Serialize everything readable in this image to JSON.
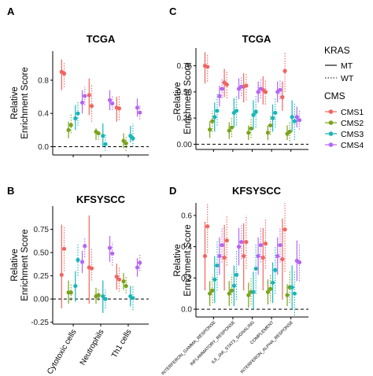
{
  "colors": {
    "CMS1": "#f0665f",
    "CMS2": "#7aa31c",
    "CMS3": "#19b6b9",
    "CMS4": "#b566f5"
  },
  "legend": {
    "kras_title": "KRAS",
    "kras_items": [
      {
        "label": "MT",
        "line": "solid"
      },
      {
        "label": "WT",
        "line": "dotted"
      }
    ],
    "cms_title": "CMS",
    "cms_items": [
      "CMS1",
      "CMS2",
      "CMS3",
      "CMS4"
    ]
  },
  "chart_data": [
    {
      "panel": "A",
      "title": "TCGA",
      "type": "pointrange",
      "ylabel": "Relative\nEnrichment Score",
      "ylim": [
        -0.1,
        1.15
      ],
      "yticks": [
        0.0,
        0.4,
        0.8
      ],
      "ytick_labels": [
        "0.0",
        "0.4",
        "0.8"
      ],
      "hline": 0,
      "categories": [
        "Cytotoxic cells",
        "Neutrophils",
        "Th1 cells"
      ],
      "show_xlabels": false,
      "series": [
        {
          "cms": "CMS1",
          "kras": "MT",
          "values": [
            0.9,
            0.62,
            0.47
          ],
          "low": [
            0.68,
            0.38,
            0.3
          ],
          "high": [
            1.05,
            0.82,
            0.6
          ]
        },
        {
          "cms": "CMS1",
          "kras": "WT",
          "values": [
            0.88,
            0.49,
            0.46
          ],
          "low": [
            0.72,
            0.3,
            0.32
          ],
          "high": [
            1.02,
            0.75,
            0.62
          ]
        },
        {
          "cms": "CMS2",
          "kras": "MT",
          "values": [
            0.2,
            0.18,
            0.07
          ],
          "low": [
            0.1,
            0.08,
            -0.02
          ],
          "high": [
            0.3,
            0.22,
            0.16
          ]
        },
        {
          "cms": "CMS2",
          "kras": "WT",
          "values": [
            0.26,
            0.16,
            0.04
          ],
          "low": [
            0.16,
            0.08,
            -0.05
          ],
          "high": [
            0.4,
            0.2,
            0.12
          ]
        },
        {
          "cms": "CMS3",
          "kras": "MT",
          "values": [
            0.34,
            0.13,
            0.13
          ],
          "low": [
            0.2,
            0.0,
            0.05
          ],
          "high": [
            0.5,
            0.28,
            0.25
          ]
        },
        {
          "cms": "CMS3",
          "kras": "WT",
          "values": [
            0.4,
            0.03,
            0.1
          ],
          "low": [
            0.25,
            -0.05,
            0.0
          ],
          "high": [
            0.55,
            0.15,
            0.28
          ]
        },
        {
          "cms": "CMS4",
          "kras": "MT",
          "values": [
            0.53,
            0.56,
            0.47
          ],
          "low": [
            0.4,
            0.44,
            0.36
          ],
          "high": [
            0.68,
            0.68,
            0.58
          ]
        },
        {
          "cms": "CMS4",
          "kras": "WT",
          "values": [
            0.61,
            0.52,
            0.41
          ],
          "low": [
            0.5,
            0.44,
            0.33
          ],
          "high": [
            0.72,
            0.62,
            0.5
          ]
        }
      ]
    },
    {
      "panel": "B",
      "title": "KFSYSCC",
      "type": "pointrange",
      "ylabel": "Relative\nEnrichment Score",
      "ylim": [
        -0.27,
        1.0
      ],
      "yticks": [
        -0.25,
        0.0,
        0.25,
        0.5,
        0.75
      ],
      "ytick_labels": [
        "-0.25",
        "0.00",
        "0.25",
        "0.50",
        "0.75"
      ],
      "hline": 0,
      "categories": [
        "Cytotoxic cells",
        "Neutrophils",
        "Th1 cells"
      ],
      "show_xlabels": true,
      "series": [
        {
          "cms": "CMS1",
          "kras": "MT",
          "values": [
            0.26,
            0.34,
            0.24
          ],
          "low": [
            -0.1,
            -0.05,
            0.1
          ],
          "high": [
            0.8,
            0.9,
            0.38
          ]
        },
        {
          "cms": "CMS1",
          "kras": "WT",
          "values": [
            0.54,
            0.33,
            0.21
          ],
          "low": [
            0.3,
            0.2,
            0.08
          ],
          "high": [
            0.78,
            0.55,
            0.35
          ]
        },
        {
          "cms": "CMS2",
          "kras": "MT",
          "values": [
            0.07,
            0.03,
            0.19
          ],
          "low": [
            -0.05,
            -0.05,
            0.1
          ],
          "high": [
            0.2,
            0.12,
            0.28
          ]
        },
        {
          "cms": "CMS2",
          "kras": "WT",
          "values": [
            0.07,
            0.04,
            0.14
          ],
          "low": [
            -0.02,
            -0.02,
            0.06
          ],
          "high": [
            0.17,
            0.1,
            0.24
          ]
        },
        {
          "cms": "CMS3",
          "kras": "MT",
          "values": [
            0.14,
            0.03,
            0.03
          ],
          "low": [
            -0.03,
            -0.15,
            -0.08
          ],
          "high": [
            0.3,
            0.2,
            0.14
          ]
        },
        {
          "cms": "CMS3",
          "kras": "WT",
          "values": [
            0.42,
            0.0,
            0.01
          ],
          "low": [
            0.25,
            -0.1,
            -0.12
          ],
          "high": [
            0.6,
            0.1,
            0.14
          ]
        },
        {
          "cms": "CMS4",
          "kras": "MT",
          "values": [
            0.4,
            0.55,
            0.34
          ],
          "low": [
            0.28,
            0.4,
            0.24
          ],
          "high": [
            0.52,
            0.68,
            0.44
          ]
        },
        {
          "cms": "CMS4",
          "kras": "WT",
          "values": [
            0.57,
            0.49,
            0.39
          ],
          "low": [
            0.45,
            0.36,
            0.3
          ],
          "high": [
            0.66,
            0.61,
            0.48
          ]
        }
      ]
    },
    {
      "panel": "C",
      "title": "TCGA",
      "type": "pointrange",
      "ylabel": "Relative\nEnrichment Score",
      "ylim": [
        -0.05,
        0.92
      ],
      "yticks": [
        0.0,
        0.25,
        0.5,
        0.75
      ],
      "ytick_labels": [
        "0.00",
        "0.25",
        "0.50",
        "0.75"
      ],
      "hline": 0,
      "categories": [
        "INTERFERON_GAMMA_RESPONSE",
        "INFLAMMATORY_RESPONSE",
        "IL6_JAK_STAT3_SIGNALING",
        "COMPLEMENT",
        "INTERFERON_ALPHA_RESPONSE"
      ],
      "show_xlabels": false,
      "series": [
        {
          "cms": "CMS1",
          "kras": "MT",
          "values": [
            0.75,
            0.59,
            0.55,
            0.52,
            0.45
          ],
          "low": [
            0.58,
            0.45,
            0.4,
            0.38,
            0.32
          ],
          "high": [
            0.88,
            0.72,
            0.68,
            0.65,
            0.6
          ]
        },
        {
          "cms": "CMS1",
          "kras": "WT",
          "values": [
            0.74,
            0.57,
            0.56,
            0.5,
            0.7
          ],
          "low": [
            0.6,
            0.44,
            0.42,
            0.38,
            0.5
          ],
          "high": [
            0.86,
            0.7,
            0.68,
            0.62,
            0.88
          ]
        },
        {
          "cms": "CMS2",
          "kras": "MT",
          "values": [
            0.14,
            0.13,
            0.11,
            0.11,
            0.1
          ],
          "low": [
            0.06,
            0.05,
            0.04,
            0.04,
            0.04
          ],
          "high": [
            0.22,
            0.21,
            0.18,
            0.18,
            0.18
          ]
        },
        {
          "cms": "CMS2",
          "kras": "WT",
          "values": [
            0.22,
            0.16,
            0.15,
            0.18,
            0.12
          ],
          "low": [
            0.12,
            0.07,
            0.06,
            0.09,
            0.03
          ],
          "high": [
            0.32,
            0.25,
            0.24,
            0.28,
            0.22
          ]
        },
        {
          "cms": "CMS3",
          "kras": "MT",
          "values": [
            0.26,
            0.3,
            0.28,
            0.25,
            0.26
          ],
          "low": [
            0.12,
            0.16,
            0.14,
            0.12,
            0.12
          ],
          "high": [
            0.4,
            0.44,
            0.42,
            0.38,
            0.42
          ]
        },
        {
          "cms": "CMS3",
          "kras": "WT",
          "values": [
            0.32,
            0.32,
            0.31,
            0.3,
            0.22
          ],
          "low": [
            0.18,
            0.18,
            0.16,
            0.16,
            0.04
          ],
          "high": [
            0.48,
            0.46,
            0.46,
            0.44,
            0.4
          ]
        },
        {
          "cms": "CMS4",
          "kras": "MT",
          "values": [
            0.46,
            0.53,
            0.5,
            0.5,
            0.26
          ],
          "low": [
            0.36,
            0.43,
            0.4,
            0.4,
            0.16
          ],
          "high": [
            0.56,
            0.63,
            0.6,
            0.6,
            0.36
          ]
        },
        {
          "cms": "CMS4",
          "kras": "WT",
          "values": [
            0.53,
            0.55,
            0.53,
            0.52,
            0.23
          ],
          "low": [
            0.44,
            0.46,
            0.44,
            0.43,
            0.14
          ],
          "high": [
            0.62,
            0.64,
            0.62,
            0.61,
            0.32
          ]
        }
      ]
    },
    {
      "panel": "D",
      "title": "KFSYSCC",
      "type": "pointrange",
      "ylabel": "Relative\nEnrichment Score",
      "ylim": [
        -0.05,
        0.68
      ],
      "yticks": [
        0.0,
        0.2,
        0.4,
        0.6
      ],
      "ytick_labels": [
        "0.0",
        "0.2",
        "0.4",
        "0.6"
      ],
      "hline": 0,
      "categories": [
        "INTERFERON_GAMMA_RESPONSE",
        "INFLAMMATORY_RESPONSE",
        "IL6_JAK_STAT3_SIGNALING",
        "COMPLEMENT",
        "INTERFERON_ALPHA_RESPONSE"
      ],
      "show_xlabels": true,
      "series": [
        {
          "cms": "CMS1",
          "kras": "MT",
          "values": [
            0.34,
            0.33,
            0.34,
            0.33,
            0.32
          ],
          "low": [
            0.12,
            0.12,
            0.12,
            0.12,
            0.06
          ],
          "high": [
            0.56,
            0.54,
            0.55,
            0.52,
            0.58
          ]
        },
        {
          "cms": "CMS1",
          "kras": "WT",
          "values": [
            0.53,
            0.44,
            0.43,
            0.42,
            0.51
          ],
          "low": [
            0.36,
            0.28,
            0.26,
            0.26,
            0.24
          ],
          "high": [
            0.68,
            0.6,
            0.6,
            0.58,
            0.68
          ]
        },
        {
          "cms": "CMS2",
          "kras": "MT",
          "values": [
            0.1,
            0.1,
            0.09,
            0.11,
            0.09
          ],
          "low": [
            0.02,
            0.02,
            0.01,
            0.03,
            0.02
          ],
          "high": [
            0.18,
            0.18,
            0.17,
            0.19,
            0.16
          ]
        },
        {
          "cms": "CMS2",
          "kras": "WT",
          "values": [
            0.12,
            0.12,
            0.11,
            0.13,
            0.14
          ],
          "low": [
            0.04,
            0.04,
            0.03,
            0.05,
            0.04
          ],
          "high": [
            0.22,
            0.22,
            0.2,
            0.22,
            0.24
          ]
        },
        {
          "cms": "CMS3",
          "kras": "MT",
          "values": [
            0.19,
            0.15,
            0.11,
            0.17,
            0.14
          ],
          "low": [
            0.04,
            0.02,
            0.0,
            0.04,
            0.0
          ],
          "high": [
            0.34,
            0.28,
            0.24,
            0.3,
            0.28
          ]
        },
        {
          "cms": "CMS3",
          "kras": "WT",
          "values": [
            0.28,
            0.22,
            0.26,
            0.25,
            0.1
          ],
          "low": [
            0.12,
            0.06,
            0.1,
            0.1,
            -0.04
          ],
          "high": [
            0.44,
            0.38,
            0.42,
            0.4,
            0.24
          ]
        },
        {
          "cms": "CMS4",
          "kras": "MT",
          "values": [
            0.34,
            0.4,
            0.34,
            0.34,
            0.31
          ],
          "low": [
            0.22,
            0.28,
            0.22,
            0.22,
            0.18
          ],
          "high": [
            0.46,
            0.52,
            0.46,
            0.46,
            0.44
          ]
        },
        {
          "cms": "CMS4",
          "kras": "WT",
          "values": [
            0.41,
            0.43,
            0.41,
            0.41,
            0.3
          ],
          "low": [
            0.3,
            0.32,
            0.3,
            0.3,
            0.18
          ],
          "high": [
            0.52,
            0.54,
            0.52,
            0.52,
            0.42
          ]
        }
      ]
    }
  ]
}
